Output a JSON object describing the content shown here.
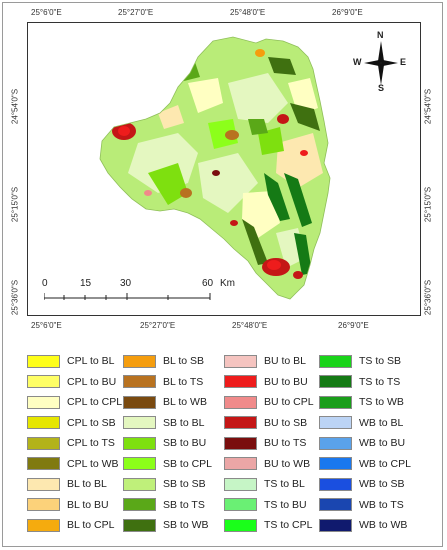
{
  "axes": {
    "top": [
      "25°6'0\"E",
      "25°27'0\"E",
      "25°48'0\"E",
      "26°9'0\"E"
    ],
    "bottom": [
      "25°6'0\"E",
      "25°27'0\"E",
      "25°48'0\"E",
      "26°9'0\"E"
    ],
    "left": [
      "24°54'0\"S",
      "25°15'0\"S",
      "25°36'0\"S"
    ],
    "right": [
      "24°54'0\"S",
      "25°15'0\"S",
      "25°36'0\"S"
    ]
  },
  "north_arrow": {
    "n": "N",
    "s": "S",
    "e": "E",
    "w": "W"
  },
  "scale_bar": {
    "ticks": [
      "0",
      "15",
      "30",
      "60"
    ],
    "unit": "Km"
  },
  "legend": [
    [
      {
        "label": "CPL to BL",
        "color": "#ffff1a"
      },
      {
        "label": "CPL to BU",
        "color": "#ffff66"
      },
      {
        "label": "CPL to CPL",
        "color": "#ffffc2"
      },
      {
        "label": "CPL to SB",
        "color": "#e6e600"
      },
      {
        "label": "CPL to TS",
        "color": "#b3b31a"
      },
      {
        "label": "CPL to WB",
        "color": "#807a10"
      },
      {
        "label": "BL to BL",
        "color": "#fde8b0"
      },
      {
        "label": "BL to BU",
        "color": "#fcd27a"
      },
      {
        "label": "BL to CPL",
        "color": "#f5ab0e"
      }
    ],
    [
      {
        "label": "BL to SB",
        "color": "#f59d0e"
      },
      {
        "label": "BL to TS",
        "color": "#b87220"
      },
      {
        "label": "BL to WB",
        "color": "#7a4a10"
      },
      {
        "label": "SB to BL",
        "color": "#e4f7c0"
      },
      {
        "label": "SB to BU",
        "color": "#7ee00f"
      },
      {
        "label": "SB to CPL",
        "color": "#8cff1a"
      },
      {
        "label": "SB to SB",
        "color": "#bff07a"
      },
      {
        "label": "SB to TS",
        "color": "#5aa818"
      },
      {
        "label": "SB to WB",
        "color": "#3f7010"
      }
    ],
    [
      {
        "label": "BU to BL",
        "color": "#f5c4c0"
      },
      {
        "label": "BU to BU",
        "color": "#ee1c1c"
      },
      {
        "label": "BU to CPL",
        "color": "#f08a8a"
      },
      {
        "label": "BU to SB",
        "color": "#c41616"
      },
      {
        "label": "BU to TS",
        "color": "#7a0e0e"
      },
      {
        "label": "BU to WB",
        "color": "#eba6a6"
      },
      {
        "label": "TS to BL",
        "color": "#c6f5c6"
      },
      {
        "label": "TS to BU",
        "color": "#6af074"
      },
      {
        "label": "TS to CPL",
        "color": "#1aff1a"
      }
    ],
    [
      {
        "label": "TS to SB",
        "color": "#1ad41a"
      },
      {
        "label": "TS to TS",
        "color": "#157a15"
      },
      {
        "label": "TS to WB",
        "color": "#1a9e1a"
      },
      {
        "label": "WB to BL",
        "color": "#bcd4f5"
      },
      {
        "label": "WB to BU",
        "color": "#5aa2ea"
      },
      {
        "label": "WB to CPL",
        "color": "#1a78ee"
      },
      {
        "label": "WB to SB",
        "color": "#1a4fe0"
      },
      {
        "label": "WB to TS",
        "color": "#1a46b0"
      },
      {
        "label": "WB to WB",
        "color": "#101a6e"
      }
    ]
  ]
}
